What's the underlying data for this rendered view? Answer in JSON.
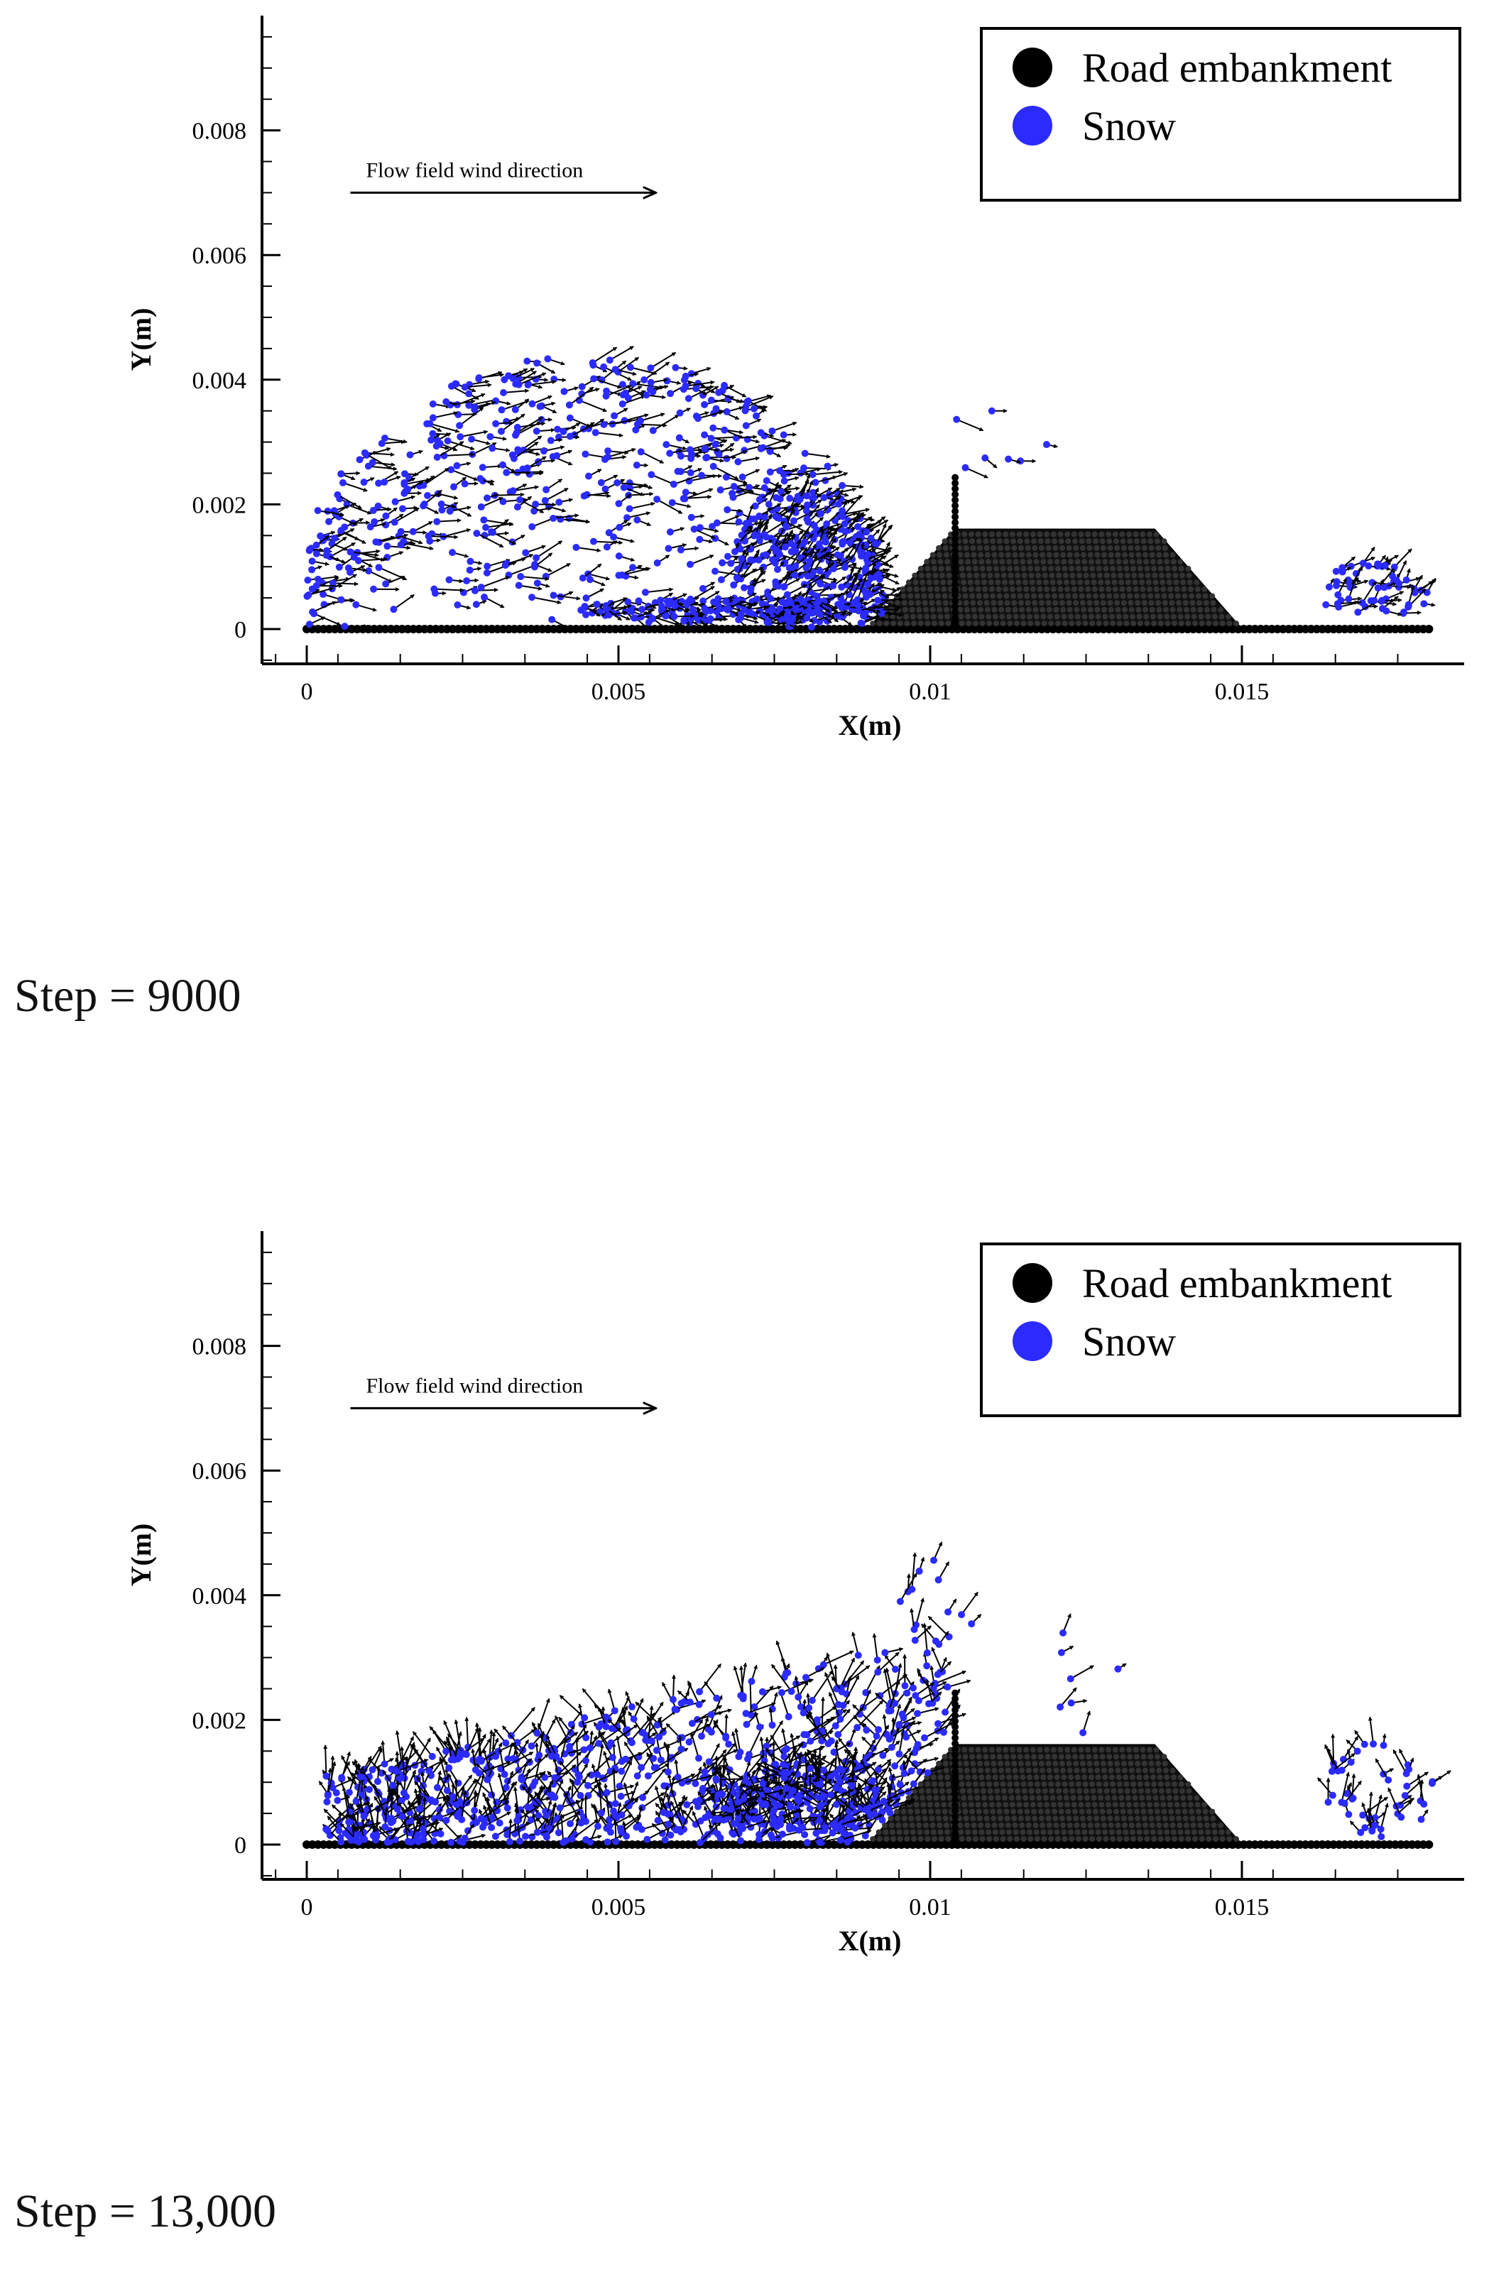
{
  "chart_data": [
    {
      "type": "scatter",
      "title": "",
      "xlabel": "X(m)",
      "ylabel": "Y(m)",
      "xlim": [
        -0.0007,
        0.0187
      ],
      "ylim": [
        -0.0006,
        0.0098
      ],
      "xticks": [
        0,
        0.005,
        0.01,
        0.015
      ],
      "xtick_labels": [
        "0",
        "0.005",
        "0.01",
        "0.015"
      ],
      "yticks": [
        0,
        0.002,
        0.004,
        0.006,
        0.008
      ],
      "ytick_labels": [
        "0",
        "0.002",
        "0.004",
        "0.006",
        "0.008"
      ],
      "grid": false,
      "legend_position": "top-right",
      "legend": [
        {
          "label": "Road embankment",
          "color": "#000000"
        },
        {
          "label": "Snow",
          "color": "#2b2bff"
        }
      ],
      "annotation": {
        "text": "Flow field wind direction",
        "x0": 0.0007,
        "x1": 0.0056,
        "y": 0.007
      },
      "step_label": "Step = 9000",
      "series": [
        {
          "name": "Road embankment",
          "kind": "embankment-polygon",
          "polygon_x": [
            0.0,
            0.009,
            0.0104,
            0.0136,
            0.015,
            0.018
          ],
          "polygon_y": [
            0.0,
            0.0,
            0.0016,
            0.0016,
            0.0,
            0.0
          ],
          "wall_x": 0.0104,
          "wall_top": 0.0025
        },
        {
          "name": "Snow",
          "kind": "velocity-vectors",
          "clouds": [
            {
              "type": "dome",
              "cx": 0.0045,
              "w": 0.0048,
              "h": 0.0044,
              "n": 560,
              "dir": 4,
              "len": 0.00033,
              "spread": 0.6,
              "seed": 11
            },
            {
              "type": "blob",
              "cx": 0.008,
              "cy": 0.0011,
              "rx": 0.0012,
              "ry": 0.0011,
              "n": 220,
              "dir": 45,
              "len": 0.0003,
              "spread": 0.5,
              "seed": 23
            },
            {
              "type": "blob",
              "cx": 0.0068,
              "cy": 0.0003,
              "rx": 0.0025,
              "ry": 0.0002,
              "n": 170,
              "dir": -5,
              "len": 0.00022,
              "spread": 0.7,
              "seed": 37
            },
            {
              "type": "blob",
              "cx": 0.011,
              "cy": 0.003,
              "rx": 0.0009,
              "ry": 0.0005,
              "n": 7,
              "dir": -18,
              "len": 0.00035,
              "spread": 0.4,
              "seed": 41
            },
            {
              "type": "blob",
              "cx": 0.0171,
              "cy": 0.0006,
              "rx": 0.0009,
              "ry": 0.0005,
              "n": 55,
              "dir": 30,
              "len": 0.00028,
              "spread": 0.8,
              "seed": 53
            }
          ]
        }
      ]
    },
    {
      "type": "scatter",
      "title": "",
      "xlabel": "X(m)",
      "ylabel": "Y(m)",
      "xlim": [
        -0.0007,
        0.0187
      ],
      "ylim": [
        -0.0006,
        0.0098
      ],
      "xticks": [
        0,
        0.005,
        0.01,
        0.015
      ],
      "xtick_labels": [
        "0",
        "0.005",
        "0.01",
        "0.015"
      ],
      "yticks": [
        0,
        0.002,
        0.004,
        0.006,
        0.008
      ],
      "ytick_labels": [
        "0",
        "0.002",
        "0.004",
        "0.006",
        "0.008"
      ],
      "grid": false,
      "legend_position": "top-right",
      "legend": [
        {
          "label": "Road embankment",
          "color": "#000000"
        },
        {
          "label": "Snow",
          "color": "#2b2bff"
        }
      ],
      "annotation": {
        "text": "Flow field wind direction",
        "x0": 0.0007,
        "x1": 0.0056,
        "y": 0.007
      },
      "step_label": "Step = 13,000",
      "series": [
        {
          "name": "Road embankment",
          "kind": "embankment-polygon",
          "polygon_x": [
            0.0,
            0.009,
            0.0104,
            0.0136,
            0.015,
            0.018
          ],
          "polygon_y": [
            0.0,
            0.0,
            0.0016,
            0.0016,
            0.0,
            0.0
          ],
          "wall_x": 0.0104,
          "wall_top": 0.0025
        },
        {
          "name": "Snow",
          "kind": "velocity-vectors",
          "clouds": [
            {
              "type": "ramp",
              "x0": 0.0003,
              "x1": 0.0104,
              "h0": 0.0011,
              "h1": 0.0034,
              "n": 760,
              "dir": 75,
              "len": 0.0004,
              "spread": 1.1,
              "seed": 61
            },
            {
              "type": "blob",
              "cx": 0.0078,
              "cy": 0.0007,
              "rx": 0.0016,
              "ry": 0.0006,
              "n": 200,
              "dir": 80,
              "len": 0.00035,
              "spread": 1.4,
              "seed": 67
            },
            {
              "type": "blob",
              "cx": 0.0101,
              "cy": 0.0038,
              "rx": 0.0006,
              "ry": 0.0009,
              "n": 14,
              "dir": 70,
              "len": 0.0004,
              "spread": 0.5,
              "seed": 71
            },
            {
              "type": "blob",
              "cx": 0.0122,
              "cy": 0.0026,
              "rx": 0.001,
              "ry": 0.0012,
              "n": 7,
              "dir": 40,
              "len": 0.0003,
              "spread": 0.6,
              "seed": 79
            },
            {
              "type": "blob",
              "cx": 0.0172,
              "cy": 0.0009,
              "rx": 0.0009,
              "ry": 0.0008,
              "n": 45,
              "dir": 80,
              "len": 0.00035,
              "spread": 1.0,
              "seed": 83
            }
          ]
        }
      ]
    }
  ]
}
